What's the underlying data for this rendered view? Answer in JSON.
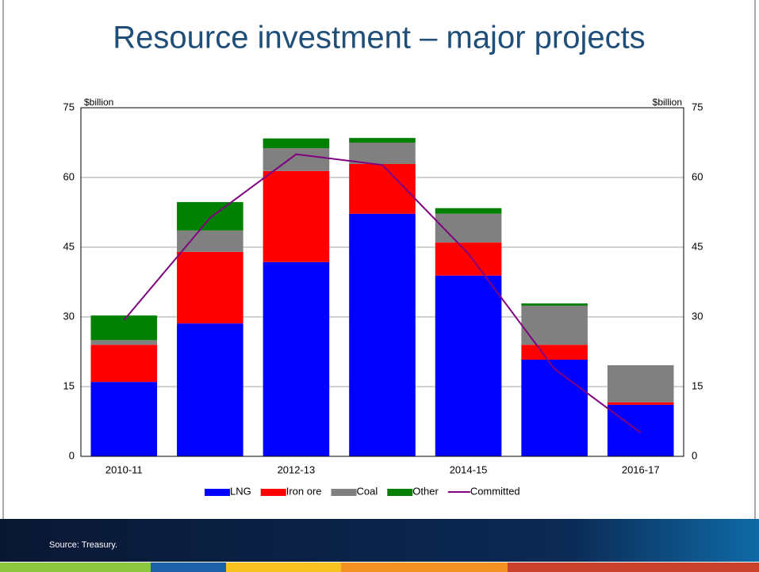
{
  "chart_data": {
    "type": "stacked_bar",
    "title": "Resource investment – major projects",
    "y_label": "$billion",
    "y2_label": "$billion",
    "categories": [
      "2010-11",
      null,
      "2012-13",
      null,
      "2014-15",
      null,
      "2016-17"
    ],
    "series": [
      {
        "name": "LNG",
        "color": "#0000ff",
        "values": [
          16,
          28.6,
          41.8,
          52.2,
          38.9,
          20.8,
          11.1
        ]
      },
      {
        "name": "Iron ore",
        "color": "#ff0000",
        "values": [
          8,
          15.4,
          19.6,
          10.7,
          7.1,
          3.2,
          0.5
        ]
      },
      {
        "name": "Coal",
        "color": "#808080",
        "values": [
          1,
          4.6,
          4.9,
          4.6,
          6.2,
          8.4,
          8
        ]
      },
      {
        "name": "Other",
        "color": "#008000",
        "values": [
          5.3,
          6.1,
          2.1,
          1,
          1.2,
          0.5,
          0
        ]
      },
      {
        "name": "Committed",
        "type": "line",
        "color": "#800080",
        "values": [
          29.3,
          51.3,
          65,
          62.7,
          43.6,
          18.8,
          5.1
        ]
      }
    ],
    "ylim": [
      0,
      75
    ],
    "yticks": [
      0,
      15,
      30,
      45,
      60,
      75
    ],
    "y2lim": [
      0,
      75
    ],
    "y2ticks": [
      0,
      15,
      30,
      45,
      60,
      75
    ],
    "grid": true,
    "legend": "bottom"
  },
  "source": "Source: Treasury."
}
